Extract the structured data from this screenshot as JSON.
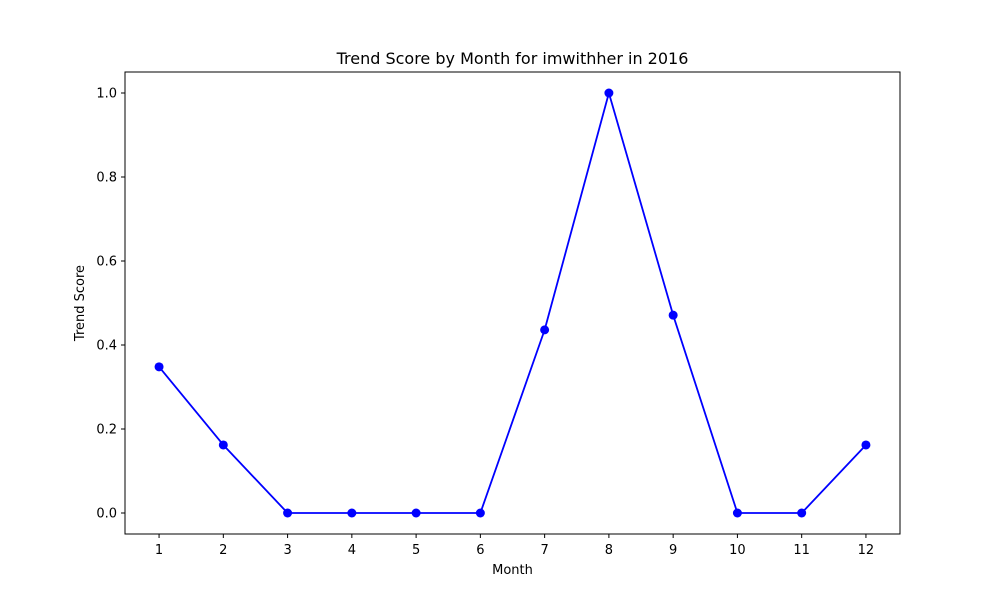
{
  "chart_data": {
    "type": "line",
    "title": "Trend Score by Month for imwithher in 2016",
    "xlabel": "Month",
    "ylabel": "Trend Score",
    "x": [
      1,
      2,
      3,
      4,
      5,
      6,
      7,
      8,
      9,
      10,
      11,
      12
    ],
    "series": [
      {
        "values": [
          0.348,
          0.162,
          0.0,
          0.0,
          0.0,
          0.0,
          0.436,
          1.0,
          0.471,
          0.0,
          0.0,
          0.162
        ]
      }
    ],
    "xlim": [
      0.47,
      12.53
    ],
    "ylim": [
      -0.05,
      1.05
    ],
    "xticks": [
      1,
      2,
      3,
      4,
      5,
      6,
      7,
      8,
      9,
      10,
      11,
      12
    ],
    "yticks": [
      0.0,
      0.2,
      0.4,
      0.6,
      0.8,
      1.0
    ],
    "ytick_labels": [
      "0.0",
      "0.2",
      "0.4",
      "0.6",
      "0.8",
      "1.0"
    ],
    "grid": false,
    "line_color": "#0000ff",
    "marker": "circle"
  }
}
